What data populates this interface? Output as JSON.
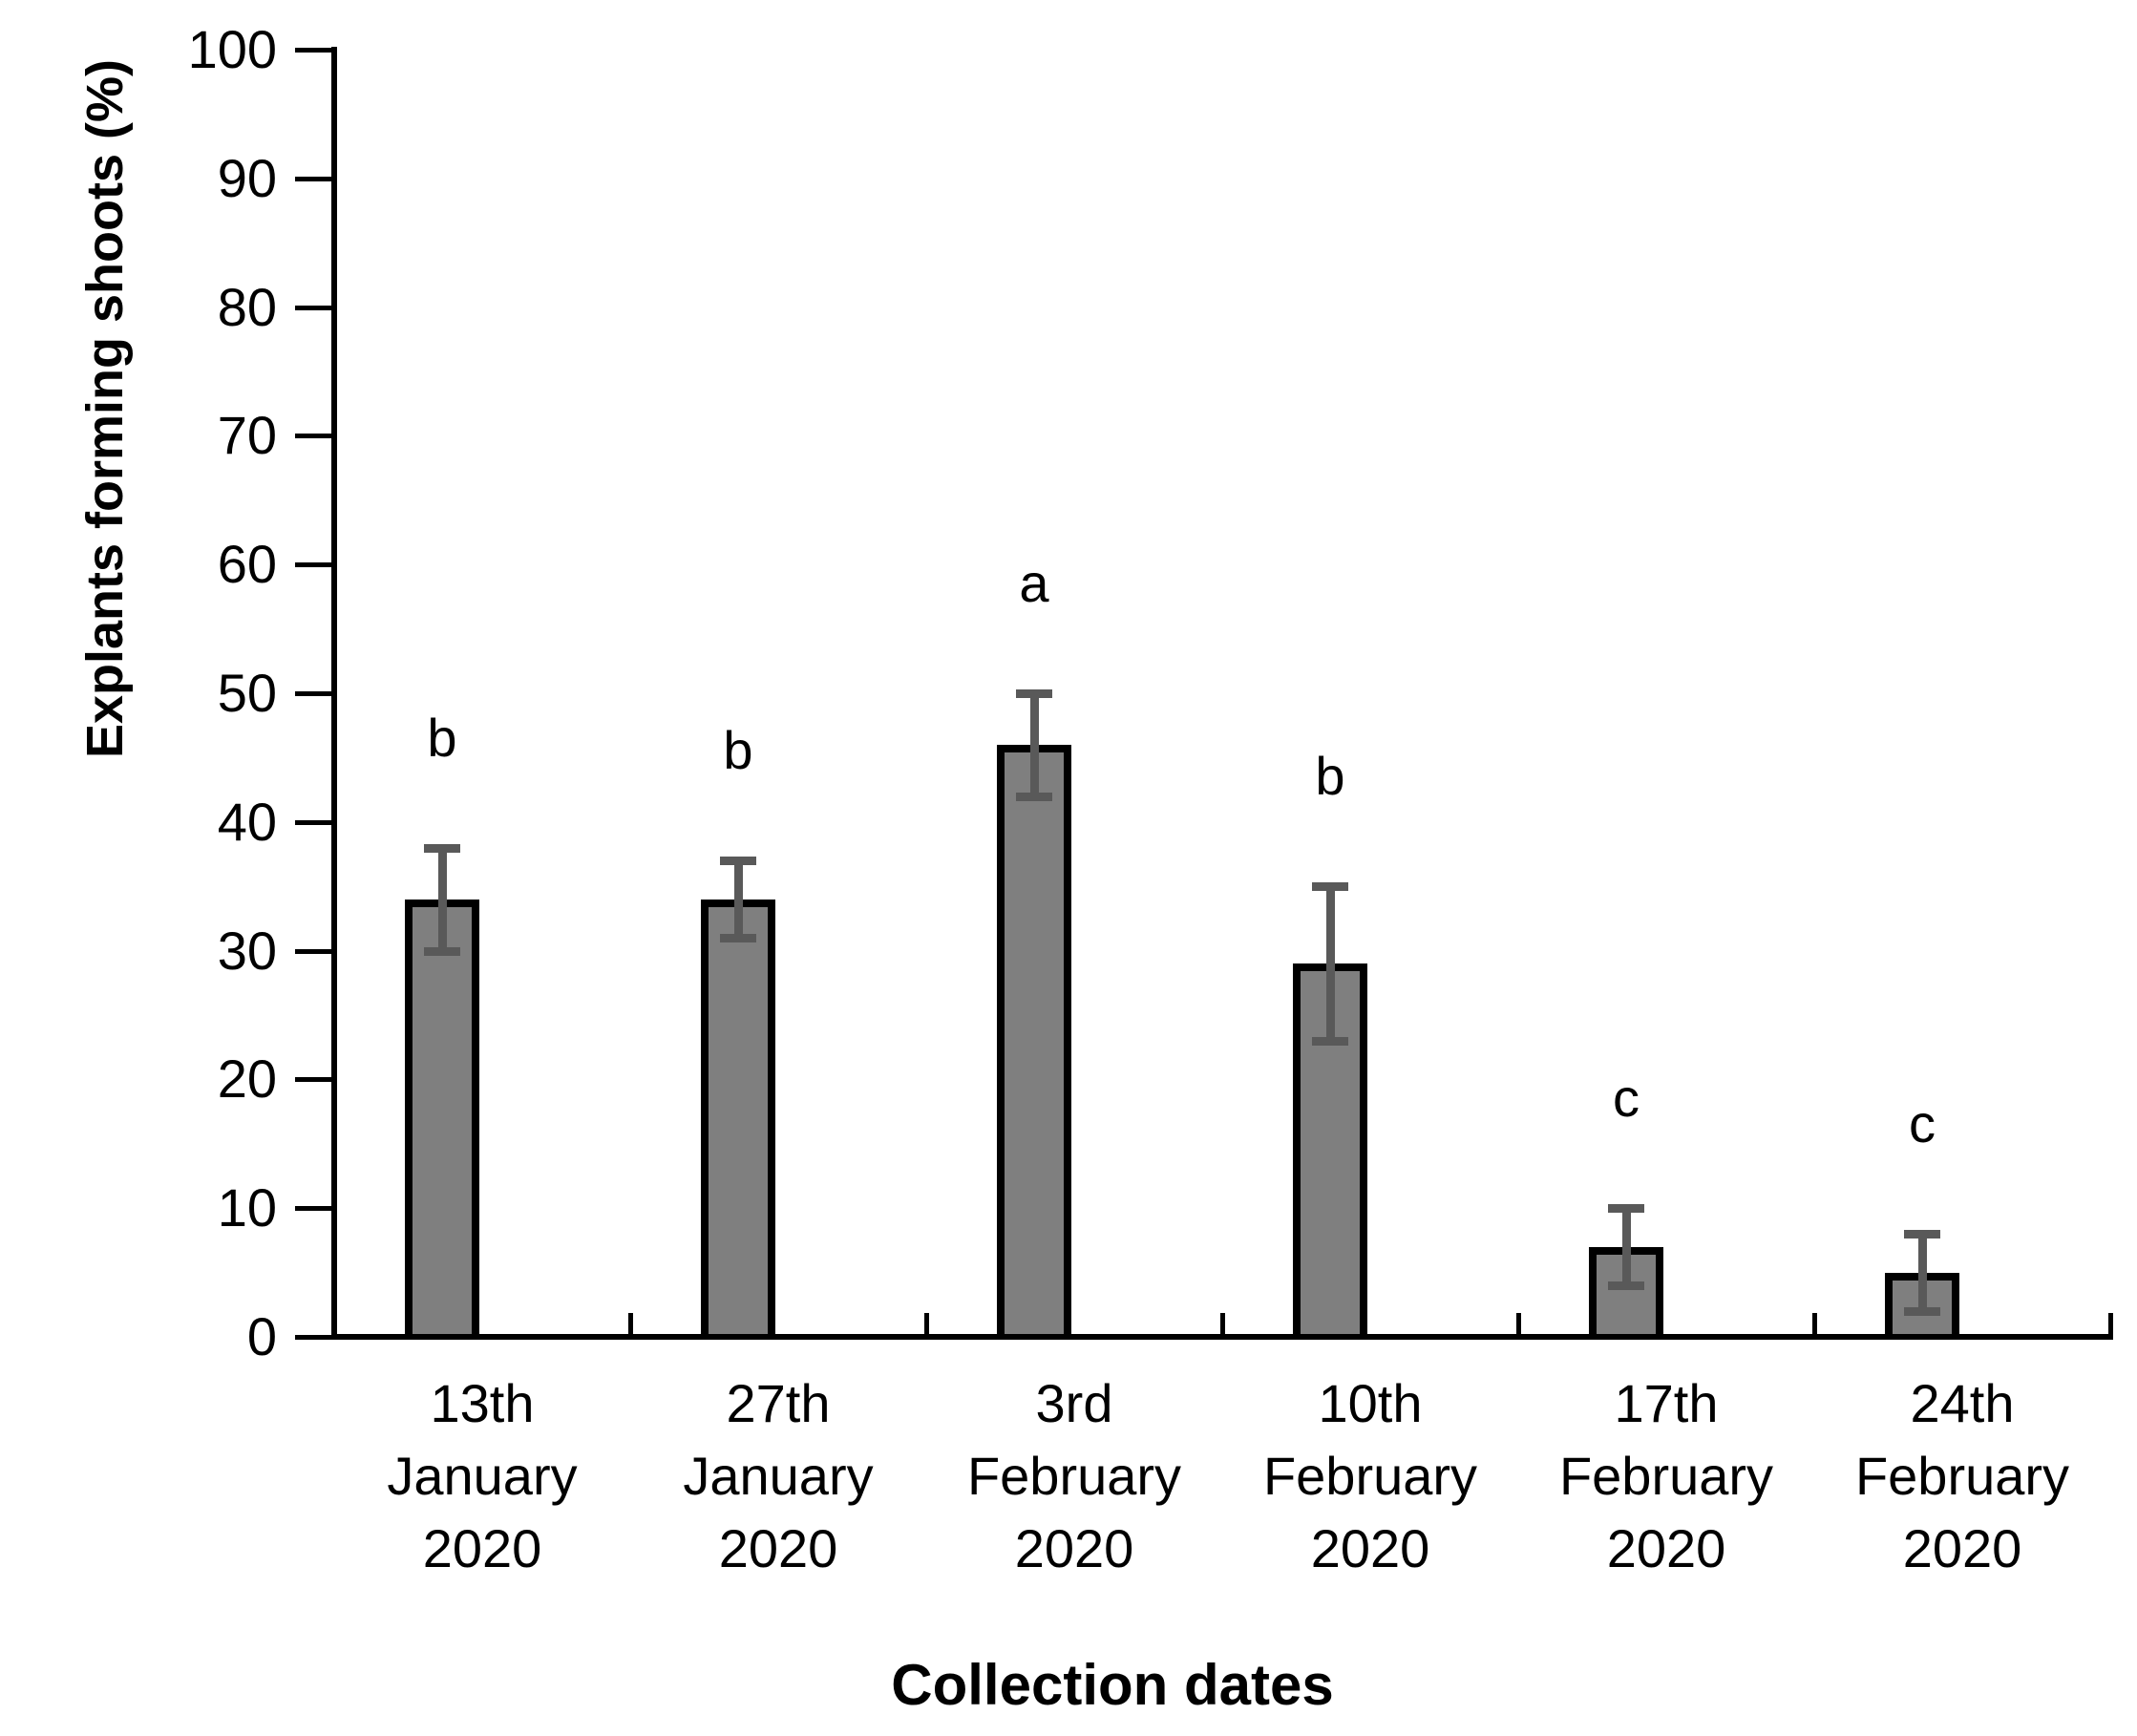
{
  "figure": {
    "background": "#ffffff"
  },
  "chart_data": {
    "type": "bar",
    "title": "",
    "xlabel": "Collection dates",
    "ylabel": "Explants forming shoots (%)",
    "ylim": [
      0,
      100
    ],
    "ytick_step": 10,
    "ytick_labels": [
      "0",
      "10",
      "20",
      "30",
      "40",
      "50",
      "60",
      "70",
      "80",
      "90",
      "100"
    ],
    "grid": false,
    "legend": "none",
    "categories": [
      "13th January 2020",
      "27th January 2020",
      "3rd February 2020",
      "10th February 2020",
      "17th February 2020",
      "24th February 2020"
    ],
    "category_lines": [
      [
        "13th",
        "January",
        "2020"
      ],
      [
        "27th",
        "January",
        "2020"
      ],
      [
        "3rd",
        "February",
        "2020"
      ],
      [
        "10th",
        "February",
        "2020"
      ],
      [
        "17th",
        "February",
        "2020"
      ],
      [
        "24th",
        "February",
        "2020"
      ]
    ],
    "series": [
      {
        "name": "Explants forming shoots (%)",
        "values": [
          34,
          34,
          46,
          29,
          7,
          5
        ],
        "error_low": [
          30,
          31,
          42,
          23,
          4,
          2
        ],
        "error_high": [
          38,
          37,
          50,
          35,
          10,
          8
        ],
        "sig_letters": [
          "b",
          "b",
          "a",
          "b",
          "c",
          "c"
        ]
      }
    ],
    "colors": {
      "bar_fill": "#7F7F7F",
      "bar_border": "#000000",
      "error_bar": "#595959",
      "axis": "#000000",
      "text": "#000000"
    }
  }
}
